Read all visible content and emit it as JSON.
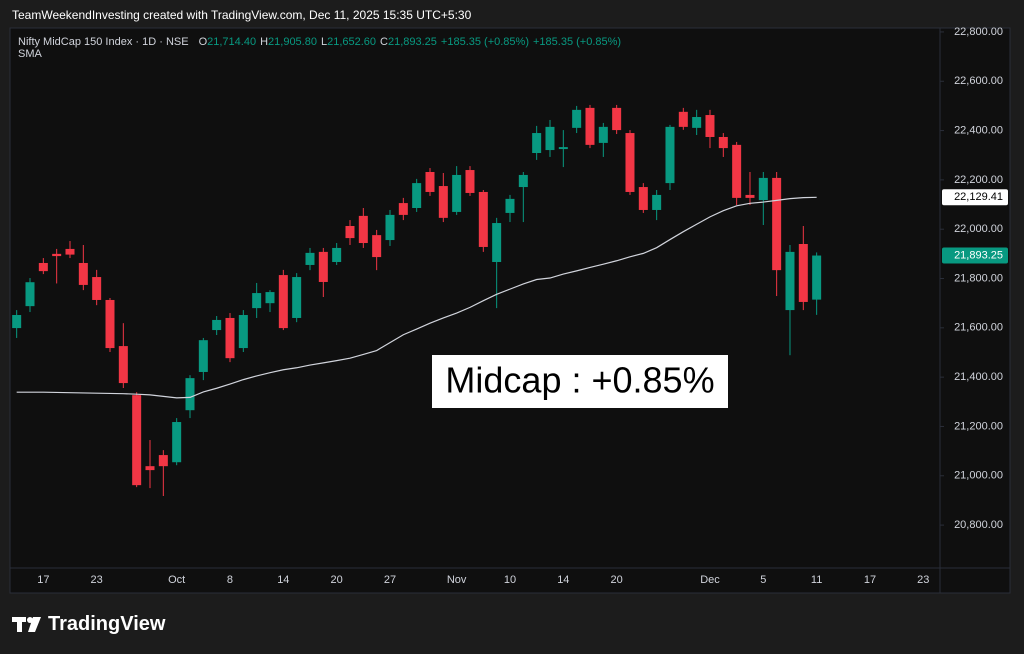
{
  "header": "TeamWeekendInvesting created with TradingView.com, Dec 11, 2025 15:35 UTC+5:30",
  "footer": {
    "brand": "TradingView"
  },
  "chart_data": {
    "type": "candlestick",
    "legend": {
      "title": "Nifty MidCap 150 Index · 1D · NSE",
      "ohlc": [
        {
          "key": "O",
          "label": "21,714.40"
        },
        {
          "key": "H",
          "label": "21,905.80"
        },
        {
          "key": "L",
          "label": "21,652.60"
        },
        {
          "key": "C",
          "label": "21,893.25"
        }
      ],
      "change": "+185.35 (+0.85%)"
    },
    "annotation": "Midcap : +0.85%",
    "up_color": "#089981",
    "down_color": "#f23645",
    "categories": [
      null,
      null,
      "17",
      null,
      null,
      null,
      "23",
      null,
      null,
      null,
      null,
      null,
      "Oct",
      null,
      null,
      null,
      "8",
      null,
      null,
      null,
      "14",
      null,
      null,
      null,
      "20",
      null,
      null,
      null,
      "27",
      null,
      null,
      null,
      null,
      "Nov",
      null,
      null,
      null,
      "10",
      null,
      null,
      null,
      "14",
      null,
      null,
      null,
      "20",
      null,
      null,
      null,
      null,
      null,
      null,
      "Dec",
      null,
      null,
      null,
      "5",
      null,
      null,
      null,
      "11",
      null,
      null,
      null,
      "17",
      null,
      null,
      null,
      "23"
    ],
    "open": [
      21599,
      21688,
      21863,
      21900,
      21920,
      21863,
      21806,
      21713,
      21526,
      21327,
      21039,
      21084,
      21055,
      21266,
      21421,
      21591,
      21640,
      21518,
      21680,
      21700,
      21814,
      21640,
      21855,
      21908,
      21867,
      22013,
      22054,
      21976,
      21956,
      22106,
      22086,
      22232,
      22175,
      22070,
      22240,
      22151,
      21867,
      22066,
      22171,
      22309,
      22321,
      22325,
      22411,
      22492,
      22350,
      22492,
      22390,
      22171,
      22078,
      22187,
      22476,
      22411,
      22463,
      22374,
      22342,
      22139,
      22118,
      22208,
      21672,
      21940,
      21714.4,
      null,
      null,
      null,
      null,
      null,
      null,
      null,
      null
    ],
    "high": [
      21672,
      21802,
      21883,
      21920,
      21952,
      21936,
      21835,
      21721,
      21619,
      21339,
      21145,
      21104,
      21234,
      21408,
      21559,
      21648,
      21660,
      21672,
      21782,
      21753,
      21835,
      21822,
      21924,
      21924,
      21944,
      22037,
      22086,
      21997,
      22078,
      22127,
      22204,
      22248,
      22228,
      22256,
      22256,
      22159,
      22046,
      22139,
      22232,
      22419,
      22443,
      22402,
      22500,
      22504,
      22431,
      22504,
      22402,
      22187,
      22159,
      22423,
      22492,
      22484,
      22484,
      22390,
      22354,
      22232,
      22232,
      22232,
      21936,
      22013,
      21905.8,
      null,
      null,
      null,
      null,
      null,
      null,
      null,
      null
    ],
    "low": [
      21559,
      21664,
      21818,
      21780,
      21883,
      21753,
      21692,
      21502,
      21356,
      20954,
      20950,
      20918,
      21043,
      21234,
      21388,
      21571,
      21461,
      21502,
      21640,
      21664,
      21591,
      21623,
      21834,
      21725,
      21855,
      21936,
      21924,
      21834,
      21932,
      22037,
      22070,
      22135,
      22029,
      22058,
      22135,
      21908,
      21680,
      22029,
      22029,
      22281,
      22293,
      22252,
      22390,
      22329,
      22293,
      22386,
      22139,
      22066,
      22037,
      22159,
      22403,
      22382,
      22329,
      22293,
      22098,
      22098,
      22017,
      21729,
      21489,
      21672,
      21652.6,
      null,
      null,
      null,
      null,
      null,
      null,
      null,
      null
    ],
    "close": [
      21652,
      21785,
      21830,
      21891,
      21897,
      21774,
      21713,
      21518,
      21376,
      20962,
      21023,
      21039,
      21218,
      21396,
      21550,
      21632,
      21477,
      21652,
      21741,
      21745,
      21599,
      21806,
      21904,
      21786,
      21924,
      21964,
      21944,
      21887,
      22058,
      22058,
      22187,
      22151,
      22046,
      22220,
      22147,
      21928,
      22025,
      22123,
      22220,
      22390,
      22415,
      22333,
      22484,
      22342,
      22415,
      22402,
      22151,
      22078,
      22139,
      22415,
      22415,
      22455,
      22374,
      22329,
      22127,
      22127,
      22208,
      21834,
      21908,
      21705,
      21893.25,
      null,
      null,
      null,
      null,
      null,
      null,
      null,
      null
    ],
    "sma": {
      "name": "SMA",
      "color": "#d1d4dc",
      "values": [
        21339,
        21339,
        21339,
        21338,
        21337,
        21336,
        21335,
        21334,
        21333,
        21331,
        21328,
        21322,
        21316,
        21318,
        21340,
        21355,
        21372,
        21390,
        21405,
        21418,
        21430,
        21438,
        21449,
        21458,
        21467,
        21477,
        21492,
        21508,
        21540,
        21572,
        21595,
        21619,
        21640,
        21660,
        21683,
        21710,
        21736,
        21757,
        21778,
        21796,
        21802,
        21818,
        21831,
        21845,
        21858,
        21872,
        21888,
        21902,
        21925,
        21958,
        21990,
        22020,
        22050,
        22075,
        22095,
        22105,
        22110,
        22117,
        22124,
        22128,
        22129.41,
        null,
        null,
        null,
        null,
        null,
        null,
        null,
        null
      ]
    },
    "price_tags": [
      {
        "value": 22129.41,
        "label": "22,129.41",
        "bg": "#ffffff",
        "fg": "#000000"
      },
      {
        "value": 21893.25,
        "label": "21,893.25",
        "bg": "#089981",
        "fg": "#ffffff"
      }
    ],
    "ylim": [
      20626,
      22816
    ],
    "yticks": [
      {
        "value": 20800,
        "label": "20,800.00"
      },
      {
        "value": 21000,
        "label": "21,000.00"
      },
      {
        "value": 21200,
        "label": "21,200.00"
      },
      {
        "value": 21400,
        "label": "21,400.00"
      },
      {
        "value": 21600,
        "label": "21,600.00"
      },
      {
        "value": 21800,
        "label": "21,800.00"
      },
      {
        "value": 22000,
        "label": "22,000.00"
      },
      {
        "value": 22200,
        "label": "22,200.00"
      },
      {
        "value": 22400,
        "label": "22,400.00"
      },
      {
        "value": 22600,
        "label": "22,600.00"
      },
      {
        "value": 22800,
        "label": "22,800.00"
      }
    ],
    "grid": false
  }
}
